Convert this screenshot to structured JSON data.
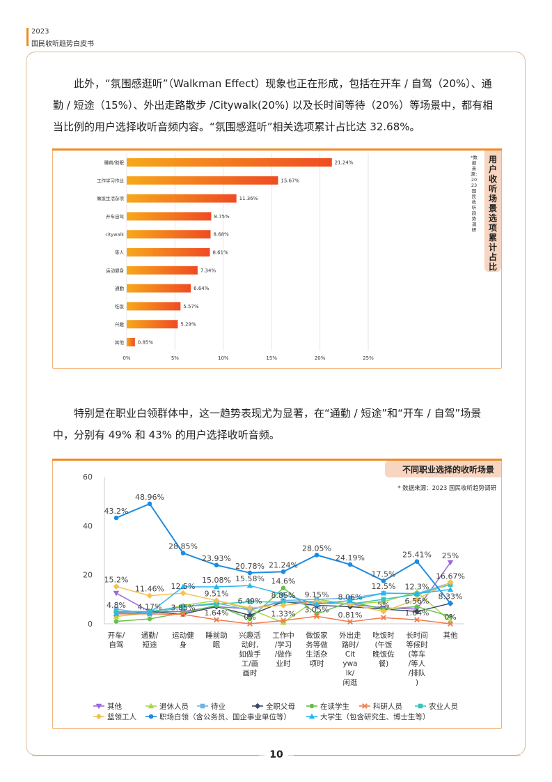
{
  "header": {
    "year": "2023",
    "title": "国民收听趋势白皮书"
  },
  "paragraphs": [
    "此外，“氛围感逛听”（Walkman Effect）现象也正在形成，包括在开车 / 自驾（20%）、通勤 / 短途（15%）、外出走路散步 /Citywalk(20%) 以及长时间等待（20%）等场景中，都有相当比例的用户选择收听音频内容。“氛围感逛听”相关选项累计占比达 32.68%。",
    "特别是在职业白领群体中，这一趋势表现尤为显著，在“通勤 / 短途”和“开车 / 自驾”场景中，分别有 49% 和 43% 的用户选择收听音频。"
  ],
  "chart1_meta": {
    "title": "用户收听场景选项累计占比",
    "source": "*数据来源：2023国民收听趋势调研"
  },
  "chart2_meta": {
    "title": "不同职业选择的收听场景",
    "source": "* 数据来源：2023 国民收听趋势调研"
  },
  "page_number": "10",
  "colors": {
    "accent": "#f08a24",
    "bar_start": "#f7a81b",
    "bar_end": "#ef4b22",
    "tag_bg": "#f7d5c0"
  },
  "chart_data": [
    {
      "type": "bar",
      "orientation": "horizontal",
      "categories": [
        "睡前/助眠",
        "工作学习作业",
        "做饭生活杂项",
        "开车自驾",
        "citywalk",
        "等人",
        "运动健身",
        "通勤",
        "吃饭",
        "兴趣",
        "其他"
      ],
      "values": [
        21.24,
        15.67,
        11.36,
        8.75,
        8.68,
        8.61,
        7.34,
        6.64,
        5.57,
        5.29,
        0.85
      ],
      "value_labels": [
        "21.24%",
        "15.67%",
        "11.36%",
        "8.75%",
        "8.68%",
        "8.61%",
        "7.34%",
        "6.64%",
        "5.57%",
        "5.29%",
        "0.85%"
      ],
      "xlim": [
        0,
        25
      ],
      "xticks": [
        "0%",
        "5%",
        "10%",
        "15%",
        "20%",
        "25%"
      ],
      "grid": true
    },
    {
      "type": "line",
      "categories": [
        "开车/\n自驾",
        "通勤/\n短途",
        "运动健\n身",
        "睡前助\n眠",
        "兴趣活\n动时,\n如做手\n工/画\n画时",
        "工作中\n/学习\n/做作\n业时",
        "做饭家\n务等做\n生活杂\n项时",
        "外出走\n路时/\nCit\nywa\nlk/\n闲逛",
        "吃饭时\n(午饭\n晚饭佐\n餐)",
        "长时间\n等候时\n(等车\n/等人\n/排队\n)",
        "其他"
      ],
      "ylim": [
        0,
        60
      ],
      "yticks": [
        "0",
        "20",
        "40",
        "60"
      ],
      "series": [
        {
          "name": "其他",
          "color": "#9a6bd6",
          "marker": "tri-down",
          "values": [
            12.5,
            5,
            5,
            7,
            6,
            9,
            8.5,
            8,
            6.5,
            6,
            25
          ]
        },
        {
          "name": "退休人员",
          "color": "#a7d943",
          "marker": "tri-up",
          "values": [
            3,
            4.5,
            7.5,
            9.5,
            6,
            0.5,
            10,
            8,
            9,
            13,
            1
          ]
        },
        {
          "name": "待业",
          "color": "#6db4e8",
          "marker": "square",
          "values": [
            6,
            4,
            7,
            8.5,
            5.5,
            9.5,
            10,
            10.5,
            12.5,
            12.3,
            16.67
          ]
        },
        {
          "name": "全职父母",
          "color": "#3a4a66",
          "marker": "diamond",
          "values": [
            4.8,
            5,
            4,
            7,
            3.5,
            9,
            7.5,
            7,
            6,
            5,
            8.33
          ]
        },
        {
          "name": "在读学生",
          "color": "#67c04a",
          "marker": "circle",
          "values": [
            1,
            2,
            4.5,
            7.5,
            2,
            14.6,
            4,
            9,
            6,
            7,
            3
          ]
        },
        {
          "name": "科研人员",
          "color": "#f07a4a",
          "marker": "x",
          "values": [
            4,
            4,
            3.85,
            1.64,
            0,
            1.33,
            3.05,
            0.81,
            2.5,
            1.64,
            0
          ]
        },
        {
          "name": "农业人员",
          "color": "#3bc4bd",
          "marker": "square",
          "values": [
            5,
            5,
            7,
            8,
            9,
            8.85,
            9.15,
            8.06,
            10,
            12,
            16
          ]
        },
        {
          "name": "蓝领工人",
          "color": "#f5c050",
          "marker": "diamond",
          "values": [
            15.2,
            11.46,
            12.5,
            9.51,
            6.49,
            7.5,
            9,
            8,
            5,
            10,
            17
          ]
        },
        {
          "name": "职场白领（含公务员、国企事业单位等）",
          "color": "#1e8be0",
          "marker": "circle",
          "values": [
            43.2,
            48.96,
            28.85,
            23.93,
            20.78,
            21.24,
            28.05,
            24.19,
            17.5,
            25.41,
            8.33
          ]
        },
        {
          "name": "大学生（包含研究生、博士生等）",
          "color": "#29b6f0",
          "marker": "tri-up",
          "values": [
            4.17,
            4.5,
            15.08,
            15.08,
            15.58,
            12,
            8,
            9.5,
            12.5,
            12.3,
            14
          ]
        }
      ],
      "data_labels": [
        {
          "cat": 0,
          "y": 43.2,
          "text": "43.2%"
        },
        {
          "cat": 1,
          "y": 48.96,
          "text": "48.96%"
        },
        {
          "cat": 2,
          "y": 28.85,
          "text": "28.85%"
        },
        {
          "cat": 3,
          "y": 23.93,
          "text": "23.93%"
        },
        {
          "cat": 4,
          "y": 20.78,
          "text": "20.78%"
        },
        {
          "cat": 5,
          "y": 21.24,
          "text": "21.24%"
        },
        {
          "cat": 6,
          "y": 28.05,
          "text": "28.05%"
        },
        {
          "cat": 7,
          "y": 24.19,
          "text": "24.19%"
        },
        {
          "cat": 8,
          "y": 17.5,
          "text": "17.5%"
        },
        {
          "cat": 9,
          "y": 25.41,
          "text": "25.41%"
        },
        {
          "cat": 10,
          "y": 25,
          "text": "25%"
        },
        {
          "cat": 0,
          "y": 15.2,
          "text": "15.2%"
        },
        {
          "cat": 1,
          "y": 11.46,
          "text": "11.46%"
        },
        {
          "cat": 2,
          "y": 12.5,
          "text": "12.5%"
        },
        {
          "cat": 3,
          "y": 15.08,
          "text": "15.08%"
        },
        {
          "cat": 4,
          "y": 15.58,
          "text": "15.58%"
        },
        {
          "cat": 5,
          "y": 14.6,
          "text": "14.6%"
        },
        {
          "cat": 6,
          "y": 9.15,
          "text": "9.15%"
        },
        {
          "cat": 7,
          "y": 8.06,
          "text": "8.06%"
        },
        {
          "cat": 8,
          "y": 12.5,
          "text": "12.5%"
        },
        {
          "cat": 9,
          "y": 12.3,
          "text": "12.3%"
        },
        {
          "cat": 10,
          "y": 16.67,
          "text": "16.67%"
        },
        {
          "cat": 0,
          "y": 4.8,
          "text": "4.8%"
        },
        {
          "cat": 1,
          "y": 4.17,
          "text": "4.17%"
        },
        {
          "cat": 2,
          "y": 3.85,
          "text": "3.85%"
        },
        {
          "cat": 3,
          "y": 9.51,
          "text": "9.51%"
        },
        {
          "cat": 4,
          "y": 6.49,
          "text": "6.49%"
        },
        {
          "cat": 5,
          "y": 8.85,
          "text": "8.85%"
        },
        {
          "cat": 6,
          "y": 3.05,
          "text": "3.05%"
        },
        {
          "cat": 7,
          "y": 0.81,
          "text": "0.81%"
        },
        {
          "cat": 8,
          "y": 5,
          "text": "5%"
        },
        {
          "cat": 9,
          "y": 6.56,
          "text": "6.56%"
        },
        {
          "cat": 10,
          "y": 8.33,
          "text": "8.33%"
        },
        {
          "cat": 3,
          "y": 1.64,
          "text": "1.64%"
        },
        {
          "cat": 4,
          "y": 0,
          "text": "0%"
        },
        {
          "cat": 5,
          "y": 1.33,
          "text": "1.33%"
        },
        {
          "cat": 9,
          "y": 1.64,
          "text": "1.64%"
        },
        {
          "cat": 10,
          "y": 0,
          "text": "0%"
        }
      ],
      "legend_position": "bottom",
      "grid": false
    }
  ]
}
